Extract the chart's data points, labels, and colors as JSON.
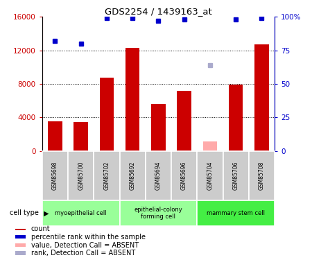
{
  "title": "GDS2254 / 1439163_at",
  "samples": [
    "GSM85698",
    "GSM85700",
    "GSM85702",
    "GSM85692",
    "GSM85694",
    "GSM85696",
    "GSM85704",
    "GSM85706",
    "GSM85708"
  ],
  "counts": [
    3500,
    3400,
    8700,
    12300,
    5600,
    7200,
    null,
    7900,
    12700
  ],
  "counts_absent": [
    null,
    null,
    null,
    null,
    null,
    null,
    1100,
    null,
    null
  ],
  "ranks_present": [
    82,
    80,
    99,
    99,
    97,
    98,
    null,
    98,
    99
  ],
  "ranks_absent": [
    null,
    null,
    null,
    null,
    null,
    null,
    64,
    null,
    null
  ],
  "bar_color": "#cc0000",
  "bar_absent_color": "#ffaaaa",
  "rank_color": "#0000cc",
  "rank_absent_color": "#aaaacc",
  "group_labels": [
    "myoepithelial cell",
    "epithelial-colony\nforming cell",
    "mammary stem cell"
  ],
  "group_ranges": [
    [
      0,
      3
    ],
    [
      3,
      6
    ],
    [
      6,
      9
    ]
  ],
  "group_colors": [
    "#99ff99",
    "#99ff99",
    "#44ee44"
  ],
  "sample_bg_color": "#cccccc",
  "ylim_left": [
    0,
    16000
  ],
  "ylim_right": [
    0,
    100
  ],
  "yticks_left": [
    0,
    4000,
    8000,
    12000,
    16000
  ],
  "yticks_right": [
    0,
    25,
    50,
    75,
    100
  ],
  "ytick_labels_right": [
    "0",
    "25",
    "50",
    "75",
    "100%"
  ],
  "legend_items": [
    {
      "color": "#cc0000",
      "label": "count"
    },
    {
      "color": "#0000cc",
      "label": "percentile rank within the sample"
    },
    {
      "color": "#ffaaaa",
      "label": "value, Detection Call = ABSENT"
    },
    {
      "color": "#aaaacc",
      "label": "rank, Detection Call = ABSENT"
    }
  ],
  "background_color": "#ffffff"
}
